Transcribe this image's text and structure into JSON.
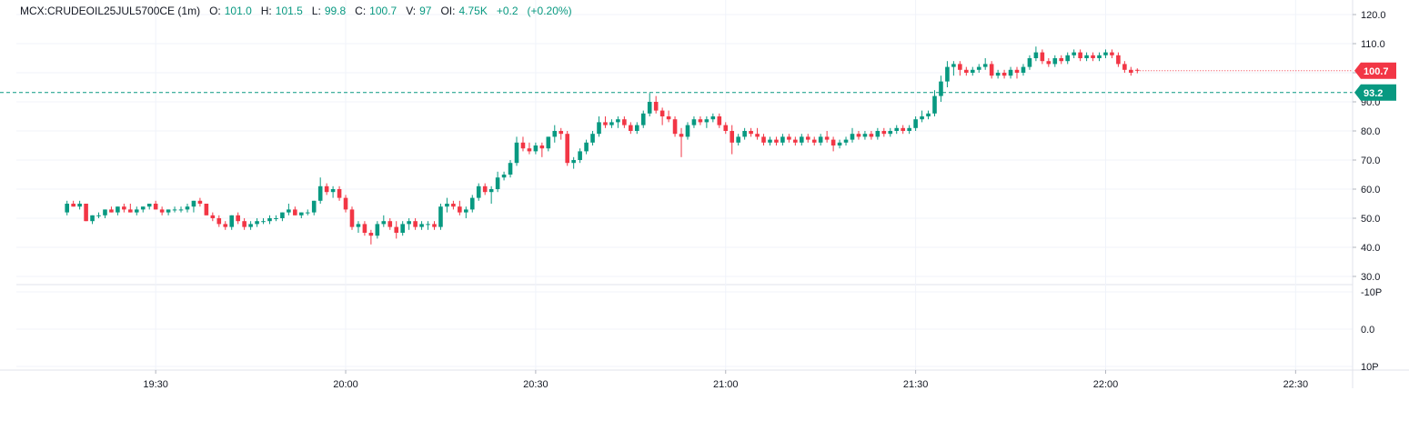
{
  "legend": {
    "symbol": "MCX:CRUDEOIL25JUL5700CE (1m)",
    "open_label": "O:",
    "open": "101.0",
    "high_label": "H:",
    "high": "101.5",
    "low_label": "L:",
    "low": "99.8",
    "close_label": "C:",
    "close": "100.7",
    "volume_label": "V:",
    "volume": "97",
    "oi_label": "OI:",
    "oi": "4.75K",
    "change": "+0.2",
    "change_pct": "(+0.20%)"
  },
  "colors": {
    "up": "#089981",
    "down": "#f23645",
    "grid": "#f0f3fa",
    "axis_text": "#131722"
  },
  "chart_data": {
    "type": "candlestick",
    "price_axis": {
      "min": 30,
      "max": 120,
      "ticks": [
        "120.0",
        "110.0",
        "100.0",
        "90.0",
        "80.0",
        "70.0",
        "60.0",
        "50.0",
        "40.0",
        "30.0"
      ]
    },
    "oi_axis": {
      "ticks": [
        "-10P",
        "0.0",
        "10P"
      ]
    },
    "time_axis": {
      "labels": [
        {
          "t": 14,
          "label": "19:30"
        },
        {
          "t": 44,
          "label": "20:00"
        },
        {
          "t": 74,
          "label": "20:30"
        },
        {
          "t": 104,
          "label": "21:00"
        },
        {
          "t": 134,
          "label": "21:30"
        },
        {
          "t": 164,
          "label": "22:00"
        },
        {
          "t": 194,
          "label": "22:30"
        }
      ],
      "range": [
        -8,
        203
      ]
    },
    "last_price": {
      "value": 100.7,
      "label": "100.7"
    },
    "dashed_line": {
      "value": 93.2,
      "label": "93.2"
    },
    "candles": [
      [
        52,
        56,
        51,
        55
      ],
      [
        55,
        56,
        54,
        54
      ],
      [
        54,
        56,
        53,
        55
      ],
      [
        55,
        55,
        49,
        49
      ],
      [
        49,
        51,
        48,
        51
      ],
      [
        51,
        52,
        50,
        51
      ],
      [
        51,
        53,
        50,
        53
      ],
      [
        53,
        54,
        52,
        52
      ],
      [
        52,
        54,
        51,
        54
      ],
      [
        54,
        55,
        52,
        53
      ],
      [
        53,
        55,
        52,
        52
      ],
      [
        52,
        54,
        51,
        53
      ],
      [
        53,
        54,
        52,
        54
      ],
      [
        54,
        55,
        53,
        55
      ],
      [
        55,
        56,
        53,
        53
      ],
      [
        53,
        54,
        51,
        52
      ],
      [
        52,
        53,
        51,
        53
      ],
      [
        53,
        54,
        52,
        53
      ],
      [
        53,
        54,
        52,
        53
      ],
      [
        53,
        55,
        52,
        54
      ],
      [
        54,
        56,
        52,
        56
      ],
      [
        56,
        57,
        54,
        55
      ],
      [
        55,
        55,
        51,
        51
      ],
      [
        51,
        52,
        49,
        50
      ],
      [
        50,
        51,
        47,
        48
      ],
      [
        48,
        49,
        46,
        47
      ],
      [
        47,
        51,
        46,
        51
      ],
      [
        51,
        52,
        48,
        49
      ],
      [
        49,
        50,
        46,
        47
      ],
      [
        47,
        49,
        46,
        48
      ],
      [
        48,
        50,
        47,
        49
      ],
      [
        49,
        50,
        48,
        49
      ],
      [
        49,
        51,
        48,
        50
      ],
      [
        50,
        51,
        49,
        50
      ],
      [
        50,
        52,
        49,
        52
      ],
      [
        52,
        55,
        51,
        53
      ],
      [
        53,
        54,
        51,
        51
      ],
      [
        51,
        52,
        50,
        52
      ],
      [
        52,
        53,
        51,
        52
      ],
      [
        52,
        56,
        51,
        56
      ],
      [
        56,
        64,
        55,
        61
      ],
      [
        61,
        62,
        58,
        59
      ],
      [
        59,
        61,
        57,
        60
      ],
      [
        60,
        61,
        56,
        57
      ],
      [
        57,
        58,
        52,
        53
      ],
      [
        53,
        54,
        46,
        47
      ],
      [
        47,
        49,
        45,
        48
      ],
      [
        48,
        49,
        44,
        45
      ],
      [
        45,
        46,
        41,
        44
      ],
      [
        44,
        49,
        43,
        48
      ],
      [
        48,
        51,
        47,
        49
      ],
      [
        49,
        50,
        46,
        47
      ],
      [
        47,
        49,
        43,
        45
      ],
      [
        45,
        49,
        44,
        48
      ],
      [
        48,
        50,
        46,
        49
      ],
      [
        49,
        50,
        46,
        47
      ],
      [
        47,
        49,
        46,
        48
      ],
      [
        48,
        49,
        46,
        48
      ],
      [
        48,
        49,
        46,
        47
      ],
      [
        47,
        55,
        46,
        54
      ],
      [
        54,
        57,
        52,
        55
      ],
      [
        55,
        56,
        53,
        54
      ],
      [
        54,
        56,
        51,
        52
      ],
      [
        52,
        54,
        50,
        53
      ],
      [
        53,
        58,
        52,
        57
      ],
      [
        57,
        62,
        56,
        61
      ],
      [
        61,
        62,
        58,
        59
      ],
      [
        59,
        61,
        55,
        60
      ],
      [
        60,
        66,
        59,
        64
      ],
      [
        64,
        66,
        63,
        65
      ],
      [
        65,
        70,
        64,
        69
      ],
      [
        69,
        78,
        68,
        76
      ],
      [
        76,
        78,
        73,
        74
      ],
      [
        74,
        76,
        72,
        73
      ],
      [
        73,
        76,
        72,
        75
      ],
      [
        75,
        76,
        71,
        74
      ],
      [
        74,
        78,
        73,
        78
      ],
      [
        78,
        82,
        76,
        80
      ],
      [
        80,
        81,
        77,
        79
      ],
      [
        79,
        80,
        68,
        69
      ],
      [
        69,
        71,
        67,
        70
      ],
      [
        70,
        74,
        69,
        73
      ],
      [
        73,
        77,
        72,
        76
      ],
      [
        76,
        80,
        75,
        79
      ],
      [
        79,
        85,
        78,
        83
      ],
      [
        83,
        85,
        81,
        82
      ],
      [
        82,
        84,
        81,
        83
      ],
      [
        83,
        85,
        81,
        84
      ],
      [
        84,
        85,
        81,
        82
      ],
      [
        82,
        83,
        79,
        80
      ],
      [
        80,
        83,
        79,
        82
      ],
      [
        82,
        87,
        81,
        86
      ],
      [
        86,
        93,
        85,
        90
      ],
      [
        90,
        92,
        86,
        87
      ],
      [
        87,
        88,
        82,
        85
      ],
      [
        85,
        87,
        83,
        84
      ],
      [
        84,
        85,
        78,
        79
      ],
      [
        79,
        81,
        71,
        78
      ],
      [
        78,
        83,
        77,
        82
      ],
      [
        82,
        85,
        81,
        84
      ],
      [
        84,
        85,
        82,
        83
      ],
      [
        83,
        85,
        81,
        84
      ],
      [
        84,
        86,
        83,
        85
      ],
      [
        85,
        86,
        81,
        82
      ],
      [
        82,
        83,
        79,
        80
      ],
      [
        80,
        82,
        72,
        76
      ],
      [
        76,
        79,
        75,
        78
      ],
      [
        78,
        81,
        77,
        80
      ],
      [
        80,
        81,
        78,
        79
      ],
      [
        79,
        81,
        77,
        78
      ],
      [
        78,
        79,
        75,
        76
      ],
      [
        76,
        78,
        75,
        77
      ],
      [
        77,
        78,
        75,
        76
      ],
      [
        76,
        79,
        75,
        78
      ],
      [
        78,
        79,
        76,
        77
      ],
      [
        77,
        78,
        75,
        76
      ],
      [
        76,
        79,
        75,
        78
      ],
      [
        78,
        79,
        76,
        77
      ],
      [
        77,
        78,
        75,
        76
      ],
      [
        76,
        79,
        75,
        78
      ],
      [
        78,
        80,
        76,
        77
      ],
      [
        77,
        78,
        73,
        75
      ],
      [
        75,
        77,
        74,
        76
      ],
      [
        76,
        78,
        75,
        77
      ],
      [
        77,
        81,
        76,
        79
      ],
      [
        79,
        80,
        77,
        78
      ],
      [
        78,
        80,
        77,
        79
      ],
      [
        79,
        80,
        77,
        78
      ],
      [
        78,
        81,
        77,
        80
      ],
      [
        80,
        81,
        78,
        79
      ],
      [
        79,
        81,
        78,
        80
      ],
      [
        80,
        82,
        79,
        81
      ],
      [
        81,
        82,
        79,
        80
      ],
      [
        80,
        82,
        79,
        81
      ],
      [
        81,
        85,
        80,
        84
      ],
      [
        84,
        87,
        83,
        85
      ],
      [
        85,
        87,
        84,
        86
      ],
      [
        86,
        94,
        85,
        92
      ],
      [
        92,
        99,
        90,
        97
      ],
      [
        97,
        104,
        95,
        102
      ],
      [
        102,
        104,
        99,
        103
      ],
      [
        103,
        104,
        99,
        101
      ],
      [
        101,
        102,
        99,
        100
      ],
      [
        100,
        102,
        99,
        101
      ],
      [
        101,
        103,
        100,
        102
      ],
      [
        102,
        105,
        101,
        103
      ],
      [
        103,
        104,
        98,
        99
      ],
      [
        99,
        101,
        98,
        100
      ],
      [
        100,
        101,
        98,
        99
      ],
      [
        99,
        102,
        98,
        101
      ],
      [
        101,
        102,
        98,
        100
      ],
      [
        100,
        103,
        99,
        102
      ],
      [
        102,
        106,
        101,
        105
      ],
      [
        105,
        109,
        104,
        107
      ],
      [
        107,
        108,
        103,
        104
      ],
      [
        104,
        105,
        102,
        103
      ],
      [
        103,
        106,
        102,
        105
      ],
      [
        105,
        106,
        103,
        104
      ],
      [
        104,
        107,
        103,
        106
      ],
      [
        106,
        108,
        105,
        107
      ],
      [
        107,
        108,
        104,
        105
      ],
      [
        105,
        107,
        104,
        106
      ],
      [
        106,
        107,
        104,
        105
      ],
      [
        105,
        107,
        104,
        106
      ],
      [
        106,
        108,
        105,
        107
      ],
      [
        107,
        108,
        105,
        106
      ],
      [
        106,
        107,
        102,
        103
      ],
      [
        103,
        104,
        100,
        101
      ],
      [
        101,
        102,
        99,
        100
      ],
      [
        101,
        101.5,
        99.8,
        100.7
      ]
    ]
  }
}
